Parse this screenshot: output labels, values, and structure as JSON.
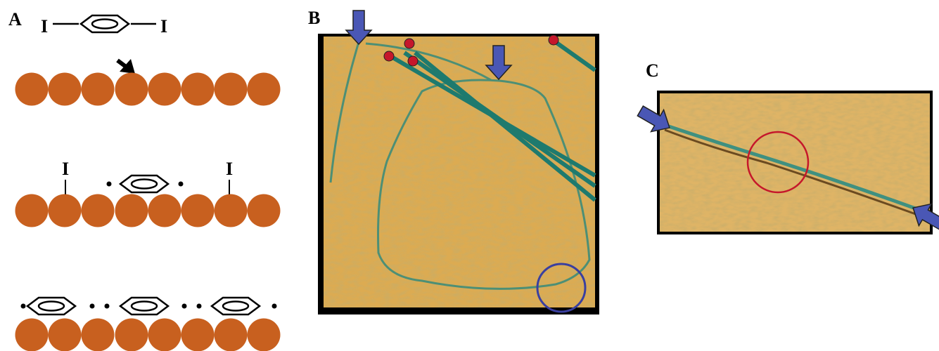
{
  "panels": {
    "a": "A",
    "b": "B",
    "c": "C"
  },
  "diagram_a": {
    "molecule_top": {
      "left_atom": "I",
      "right_atom": "I"
    },
    "adsorbed": {
      "left_atom": "I",
      "right_atom": "I"
    }
  }
}
